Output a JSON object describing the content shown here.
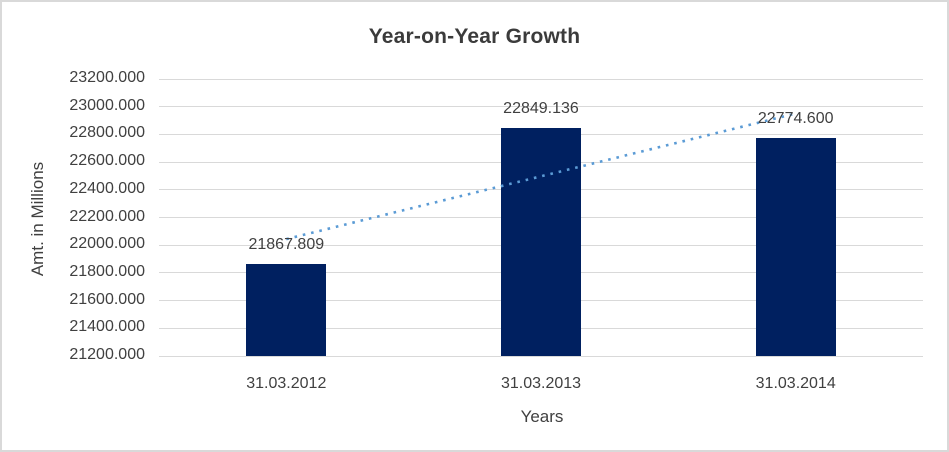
{
  "window": {
    "background": "#ffffff",
    "border_color": "#d9d9d9"
  },
  "chart_data": {
    "type": "bar",
    "title": "Year-on-Year Growth",
    "xlabel": "Years",
    "ylabel": "Amt. in Millions",
    "categories": [
      "31.03.2012",
      "31.03.2013",
      "31.03.2014"
    ],
    "values": [
      21867.809,
      22849.136,
      22774.6
    ],
    "data_labels": [
      "21867.809",
      "22849.136",
      "22774.600"
    ],
    "ylim": [
      21200,
      23200
    ],
    "ytick_step": 200,
    "ytick_labels": [
      "21200.000",
      "21400.000",
      "21600.000",
      "21800.000",
      "22000.000",
      "22200.000",
      "22400.000",
      "22600.000",
      "22800.000",
      "23000.000",
      "23200.000"
    ],
    "grid": true,
    "legend": "none",
    "bar_color": "#002060",
    "trendline": {
      "type": "linear",
      "style": "dotted",
      "color": "#5b9bd5"
    },
    "colors": {
      "gridline": "#d9d9d9",
      "tick_text": "#404040",
      "title_text": "#3b3b3b"
    }
  }
}
